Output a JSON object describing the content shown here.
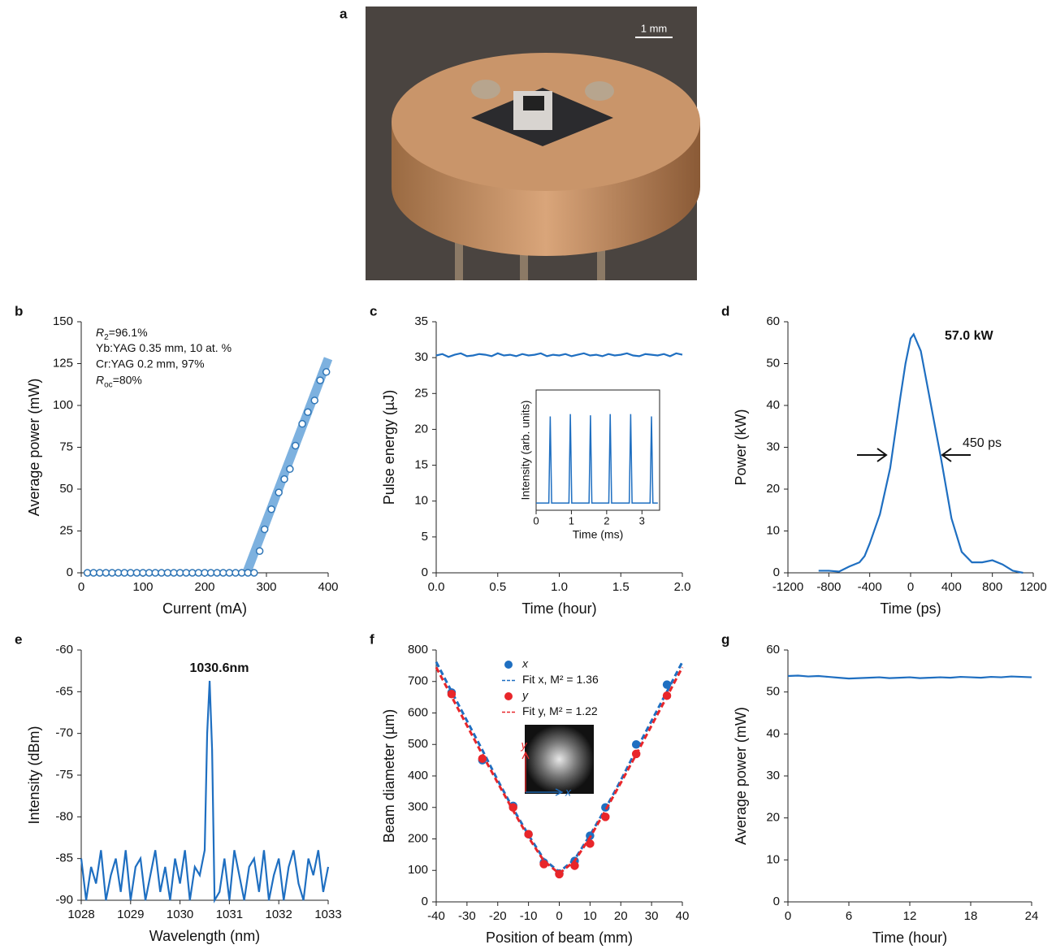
{
  "photo": {
    "panel": "a",
    "scale_bar": "1 mm"
  },
  "chart_data": [
    {
      "type": "scatter",
      "panel": "b",
      "x_label": "Current (mA)",
      "y_label": "Average power (mW)",
      "xlim": [
        0,
        400
      ],
      "ylim": [
        0,
        150
      ],
      "xticks": [
        0,
        100,
        200,
        300,
        400
      ],
      "yticks": [
        0,
        25,
        50,
        75,
        100,
        125,
        150
      ],
      "annotations": [
        [
          "R",
          "2",
          "=96.1%"
        ],
        "Yb:YAG 0.35 mm, 10 at. %",
        "Cr:YAG 0.2 mm, 97%",
        [
          "R",
          "oc",
          "=80%"
        ]
      ],
      "series": [
        {
          "mode": "band",
          "color": "#6fa8dc",
          "x": [
            268,
            400
          ],
          "values": [
            0,
            128
          ]
        },
        {
          "mode": "markers",
          "color": "#2e75b6",
          "x": [
            10,
            20,
            30,
            40,
            50,
            60,
            70,
            80,
            90,
            100,
            110,
            120,
            130,
            140,
            150,
            160,
            170,
            180,
            190,
            200,
            210,
            220,
            230,
            240,
            250,
            260,
            270,
            280,
            289,
            297,
            308,
            320,
            329,
            338,
            347,
            358,
            367,
            378,
            387,
            397
          ],
          "values": [
            0,
            0,
            0,
            0,
            0,
            0,
            0,
            0,
            0,
            0,
            0,
            0,
            0,
            0,
            0,
            0,
            0,
            0,
            0,
            0,
            0,
            0,
            0,
            0,
            0,
            0,
            0,
            0,
            13,
            26,
            38,
            48,
            56,
            62,
            76,
            89,
            96,
            103,
            115,
            120
          ]
        }
      ]
    },
    {
      "type": "line",
      "panel": "c",
      "x_label": "Time (hour)",
      "y_label": "Pulse energy (µJ)",
      "xlim": [
        0,
        2
      ],
      "ylim": [
        0,
        35
      ],
      "xticks": [
        {
          "value": 0,
          "label": "0.0"
        },
        0.5,
        {
          "value": 1,
          "label": "1.0"
        },
        1.5,
        {
          "value": 2,
          "label": "2.0"
        }
      ],
      "yticks": [
        0,
        5,
        10,
        15,
        20,
        25,
        30,
        35
      ],
      "series": [
        {
          "mode": "line",
          "color": "#1f6fc1",
          "x": [
            0,
            0.05,
            0.1,
            0.15,
            0.2,
            0.25,
            0.3,
            0.35,
            0.4,
            0.45,
            0.5,
            0.55,
            0.6,
            0.65,
            0.7,
            0.75,
            0.8,
            0.85,
            0.9,
            0.95,
            1,
            1.05,
            1.1,
            1.15,
            1.2,
            1.25,
            1.3,
            1.35,
            1.4,
            1.45,
            1.5,
            1.55,
            1.6,
            1.65,
            1.7,
            1.75,
            1.8,
            1.85,
            1.9,
            1.95,
            2
          ],
          "values": [
            30.3,
            30.5,
            30.1,
            30.4,
            30.6,
            30.2,
            30.3,
            30.5,
            30.4,
            30.2,
            30.6,
            30.3,
            30.4,
            30.2,
            30.5,
            30.3,
            30.4,
            30.6,
            30.2,
            30.4,
            30.3,
            30.5,
            30.2,
            30.4,
            30.6,
            30.3,
            30.4,
            30.2,
            30.5,
            30.3,
            30.4,
            30.6,
            30.3,
            30.2,
            30.5,
            30.4,
            30.3,
            30.5,
            30.2,
            30.6,
            30.4
          ]
        }
      ],
      "inset": {
        "type": "line",
        "x_label": "Time (ms)",
        "y_label": "Intensity (arb. units)",
        "xlim": [
          0,
          3.5
        ],
        "ylim": [
          0,
          1
        ],
        "xticks": [
          0,
          1,
          2,
          3
        ],
        "series": [
          {
            "mode": "line",
            "color": "#1f6fc1",
            "x": [
              0,
              0.36,
              0.4,
              0.44,
              0.93,
              0.97,
              1.01,
              1.5,
              1.54,
              1.58,
              2.06,
              2.1,
              2.14,
              2.64,
              2.68,
              2.72,
              3.23,
              3.27,
              3.31,
              3.45
            ],
            "values": [
              0.06,
              0.06,
              0.78,
              0.06,
              0.06,
              0.8,
              0.06,
              0.06,
              0.79,
              0.06,
              0.06,
              0.8,
              0.06,
              0.06,
              0.8,
              0.06,
              0.06,
              0.78,
              0.06,
              0.06
            ]
          }
        ]
      }
    },
    {
      "type": "line",
      "panel": "d",
      "x_label": "Time (ps)",
      "y_label": "Power (kW)",
      "xlim": [
        -1200,
        1200
      ],
      "ylim": [
        0,
        60
      ],
      "xticks": [
        -1200,
        -800,
        -400,
        0,
        400,
        800,
        1200
      ],
      "yticks": [
        0,
        10,
        20,
        30,
        40,
        50,
        60
      ],
      "annotations": [
        "57.0 kW",
        "450 ps"
      ],
      "series": [
        {
          "mode": "line",
          "color": "#1f6fc1",
          "x": [
            -900,
            -800,
            -700,
            -600,
            -500,
            -450,
            -400,
            -300,
            -200,
            -100,
            -50,
            0,
            30,
            100,
            200,
            300,
            400,
            500,
            600,
            700,
            800,
            900,
            1000,
            1100
          ],
          "values": [
            0.5,
            0.5,
            0.3,
            1.5,
            2.5,
            4,
            7,
            14,
            25,
            42,
            50,
            56,
            57,
            53,
            40,
            27,
            13,
            5,
            2.5,
            2.5,
            3,
            2,
            0.5,
            0
          ]
        }
      ]
    },
    {
      "type": "line",
      "panel": "e",
      "x_label": "Wavelength (nm)",
      "y_label": "Intensity (dBm)",
      "xlim": [
        1028,
        1033
      ],
      "ylim": [
        -90,
        -60
      ],
      "xticks": [
        1028,
        1029,
        1030,
        1031,
        1032,
        1033
      ],
      "yticks": [
        -90,
        -85,
        -80,
        -75,
        -70,
        -65,
        -60
      ],
      "annotations": [
        "1030.6nm"
      ],
      "series": [
        {
          "mode": "line",
          "color": "#1f6fc1",
          "x": [
            1028,
            1028.1,
            1028.2,
            1028.3,
            1028.4,
            1028.5,
            1028.6,
            1028.7,
            1028.8,
            1028.9,
            1029,
            1029.1,
            1029.2,
            1029.3,
            1029.4,
            1029.5,
            1029.6,
            1029.7,
            1029.8,
            1029.9,
            1030,
            1030.1,
            1030.2,
            1030.3,
            1030.4,
            1030.5,
            1030.55,
            1030.6,
            1030.65,
            1030.7,
            1030.8,
            1030.9,
            1031,
            1031.1,
            1031.2,
            1031.3,
            1031.4,
            1031.5,
            1031.6,
            1031.7,
            1031.8,
            1031.9,
            1032,
            1032.1,
            1032.2,
            1032.3,
            1032.4,
            1032.5,
            1032.6,
            1032.7,
            1032.8,
            1032.9,
            1033
          ],
          "values": [
            -85,
            -90,
            -86,
            -88,
            -84,
            -90,
            -87,
            -85,
            -89,
            -84,
            -90,
            -86,
            -85,
            -90,
            -87,
            -84,
            -89,
            -86,
            -90,
            -85,
            -88,
            -84,
            -90,
            -86,
            -87,
            -84,
            -70,
            -63.7,
            -72,
            -90,
            -89,
            -85,
            -90,
            -84,
            -87,
            -90,
            -86,
            -85,
            -89,
            -84,
            -90,
            -87,
            -85,
            -90,
            -86,
            -84,
            -88,
            -90,
            -85,
            -87,
            -84,
            -89,
            -86
          ]
        }
      ]
    },
    {
      "type": "scatter",
      "panel": "f",
      "x_label": "Position of beam (mm)",
      "y_label": "Beam diameter (µm)",
      "xlim": [
        -40,
        40
      ],
      "ylim": [
        0,
        800
      ],
      "xticks": [
        -40,
        -30,
        -20,
        -10,
        0,
        10,
        20,
        30,
        40
      ],
      "yticks": [
        0,
        100,
        200,
        300,
        400,
        500,
        600,
        700,
        800
      ],
      "inset_axes": [
        "x",
        "y"
      ],
      "series": [
        {
          "name": "x",
          "mode": "markers",
          "color": "#1f6fc1",
          "x": [
            -35,
            -25,
            -15,
            -10,
            -5,
            0,
            5,
            10,
            15,
            25,
            35
          ],
          "values": [
            665,
            450,
            305,
            215,
            125,
            90,
            130,
            210,
            300,
            500,
            690
          ]
        },
        {
          "name": "Fit x, M² = 1.36",
          "mode": "dashed",
          "color": "#1f6fc1",
          "x": [
            -40,
            -35,
            -30,
            -25,
            -20,
            -15,
            -10,
            -5,
            0,
            5,
            10,
            15,
            20,
            25,
            30,
            35,
            40
          ],
          "values": [
            762,
            668,
            575,
            482,
            386,
            296,
            212,
            135,
            95,
            135,
            212,
            296,
            386,
            482,
            575,
            668,
            762
          ]
        },
        {
          "name": "y",
          "mode": "markers",
          "color": "#e8262a",
          "x": [
            -35,
            -25,
            -15,
            -10,
            -5,
            0,
            5,
            10,
            15,
            25,
            35
          ],
          "values": [
            660,
            455,
            300,
            215,
            120,
            88,
            115,
            185,
            270,
            470,
            655
          ]
        },
        {
          "name": "Fit y, M² = 1.22",
          "mode": "dashed",
          "color": "#e8262a",
          "x": [
            -40,
            -35,
            -30,
            -25,
            -20,
            -15,
            -10,
            -5,
            0,
            5,
            10,
            15,
            20,
            25,
            30,
            35,
            40
          ],
          "values": [
            745,
            652,
            560,
            468,
            378,
            290,
            205,
            130,
            90,
            130,
            205,
            290,
            378,
            468,
            560,
            652,
            745
          ]
        }
      ]
    },
    {
      "type": "line",
      "panel": "g",
      "x_label": "Time (hour)",
      "y_label": "Average power (mW)",
      "xlim": [
        0,
        24
      ],
      "ylim": [
        0,
        60
      ],
      "xticks": [
        0,
        6,
        12,
        18,
        24
      ],
      "yticks": [
        0,
        10,
        20,
        30,
        40,
        50,
        60
      ],
      "series": [
        {
          "mode": "line",
          "color": "#1f6fc1",
          "x": [
            0,
            1,
            2,
            3,
            4,
            5,
            6,
            7,
            8,
            9,
            10,
            11,
            12,
            13,
            14,
            15,
            16,
            17,
            18,
            19,
            20,
            21,
            22,
            23,
            24
          ],
          "values": [
            53.8,
            53.9,
            53.7,
            53.8,
            53.6,
            53.4,
            53.2,
            53.3,
            53.4,
            53.5,
            53.3,
            53.4,
            53.5,
            53.3,
            53.4,
            53.5,
            53.4,
            53.6,
            53.5,
            53.4,
            53.6,
            53.5,
            53.7,
            53.6,
            53.5
          ]
        }
      ]
    }
  ]
}
